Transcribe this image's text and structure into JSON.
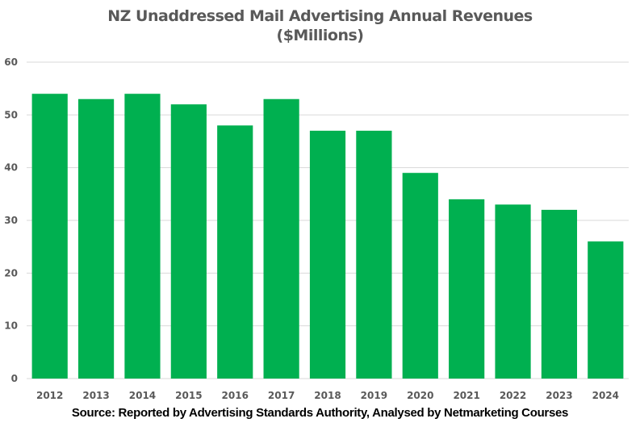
{
  "chart_data": {
    "type": "bar",
    "title_lines": [
      "NZ Unaddressed Mail Advertising Annual Revenues",
      "($Millions)"
    ],
    "categories": [
      "2012",
      "2013",
      "2014",
      "2015",
      "2016",
      "2017",
      "2018",
      "2019",
      "2020",
      "2021",
      "2022",
      "2023",
      "2024"
    ],
    "values": [
      54,
      53,
      54,
      52,
      48,
      53,
      47,
      47,
      39,
      34,
      33,
      32,
      26
    ],
    "xlabel": "",
    "ylabel": "",
    "ylim": [
      0,
      60
    ],
    "yticks": [
      0,
      10,
      20,
      30,
      40,
      50,
      60
    ],
    "grid": true,
    "legend": "none",
    "bar_color": "#00b050",
    "source": "Source: Reported by Advertising Standards Authority, Analysed by Netmarketing Courses"
  }
}
